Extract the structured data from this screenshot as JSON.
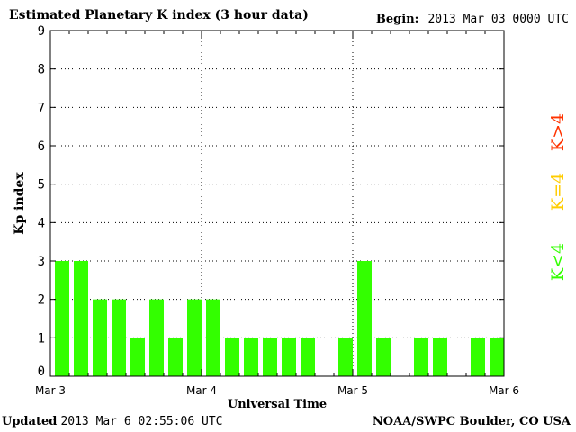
{
  "header": {
    "title": "Estimated Planetary K index (3 hour data)",
    "begin_label": "Begin:",
    "begin_value": "2013 Mar 03 0000 UTC"
  },
  "footer": {
    "updated_label": "Updated",
    "updated_value": "2013 Mar  6 02:55:06 UTC",
    "source": "NOAA/SWPC Boulder, CO USA"
  },
  "legend": {
    "items": [
      {
        "label": "K>4",
        "color": "#ff3300"
      },
      {
        "label": "K=4",
        "color": "#ffcc00"
      },
      {
        "label": "K<4",
        "color": "#33ff00"
      }
    ]
  },
  "chart_data": {
    "type": "bar",
    "title": "Estimated Planetary K index (3 hour data)",
    "xlabel": "Universal Time",
    "ylabel": "Kp index",
    "ylim": [
      0,
      9
    ],
    "yticks": [
      0,
      1,
      2,
      3,
      4,
      5,
      6,
      7,
      8,
      9
    ],
    "x_tick_labels": [
      "Mar 3",
      "Mar 4",
      "Mar 5",
      "Mar 6"
    ],
    "interval_hours": 3,
    "grid": true,
    "bar_color": "#33ff00",
    "values": [
      3,
      3,
      2,
      2,
      1,
      2,
      1,
      2,
      2,
      1,
      1,
      1,
      1,
      1,
      null,
      1,
      3,
      1,
      null,
      1,
      1,
      null,
      1,
      1
    ]
  }
}
